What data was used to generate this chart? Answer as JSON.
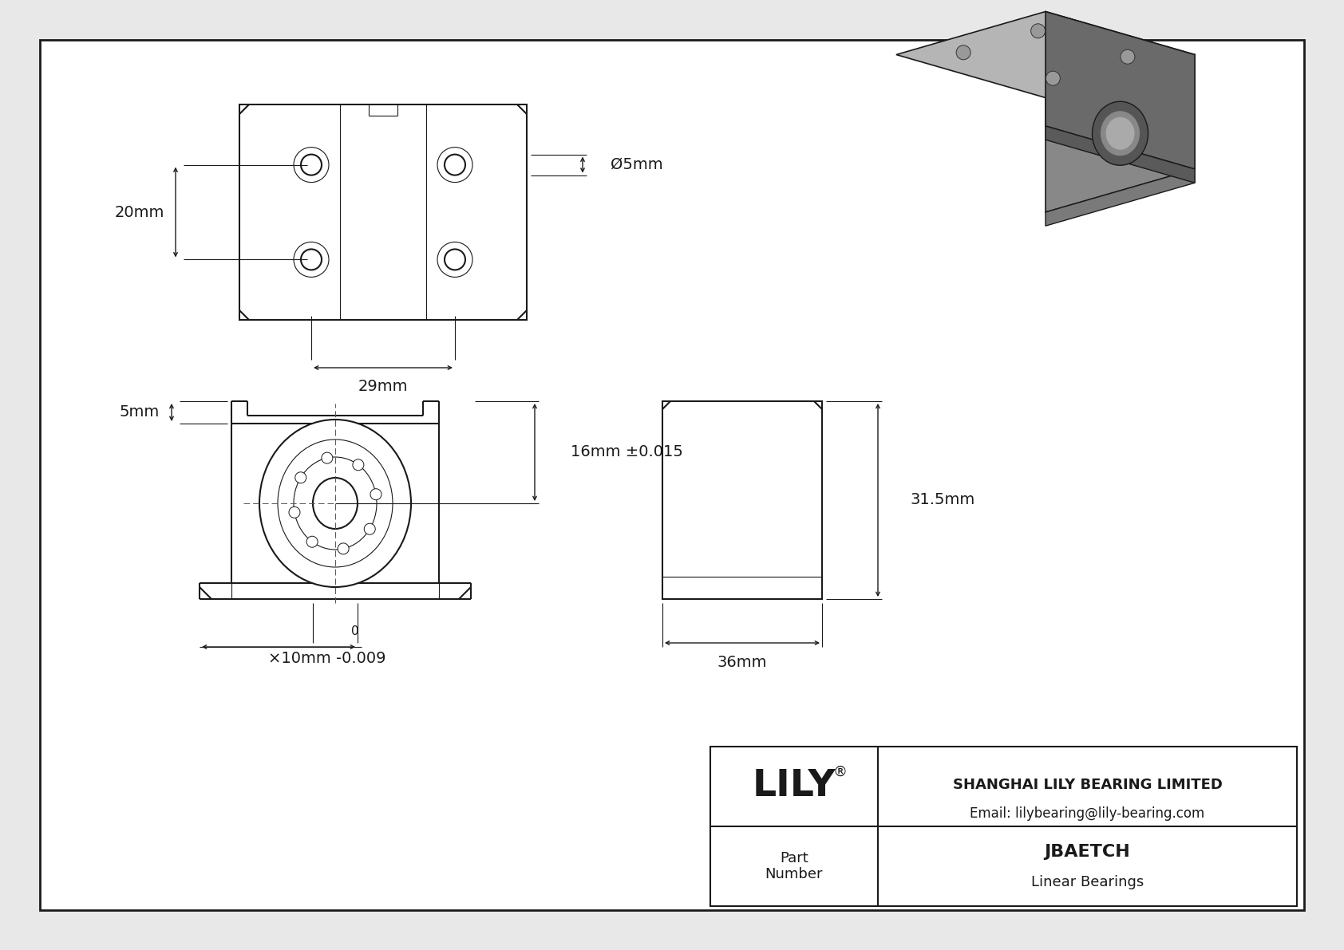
{
  "bg_color": "#e8e8e8",
  "drawing_bg": "#ffffff",
  "line_color": "#1a1a1a",
  "title": "JBAETCH",
  "subtitle": "Linear Bearings",
  "company": "SHANGHAI LILY BEARING LIMITED",
  "email": "Email: lilybearing@lily-bearing.com",
  "part_label": "Part\nNumber",
  "dim_20mm": "20mm",
  "dim_29mm": "29mm",
  "dim_5mm": "Ø5mm",
  "dim_5mm_top": "5mm",
  "dim_16mm": "16mm ±0.015",
  "dim_10mm": "×10mm -0.009",
  "dim_10mm_sup": "0",
  "dim_31_5mm": "31.5mm",
  "dim_36mm": "36mm"
}
